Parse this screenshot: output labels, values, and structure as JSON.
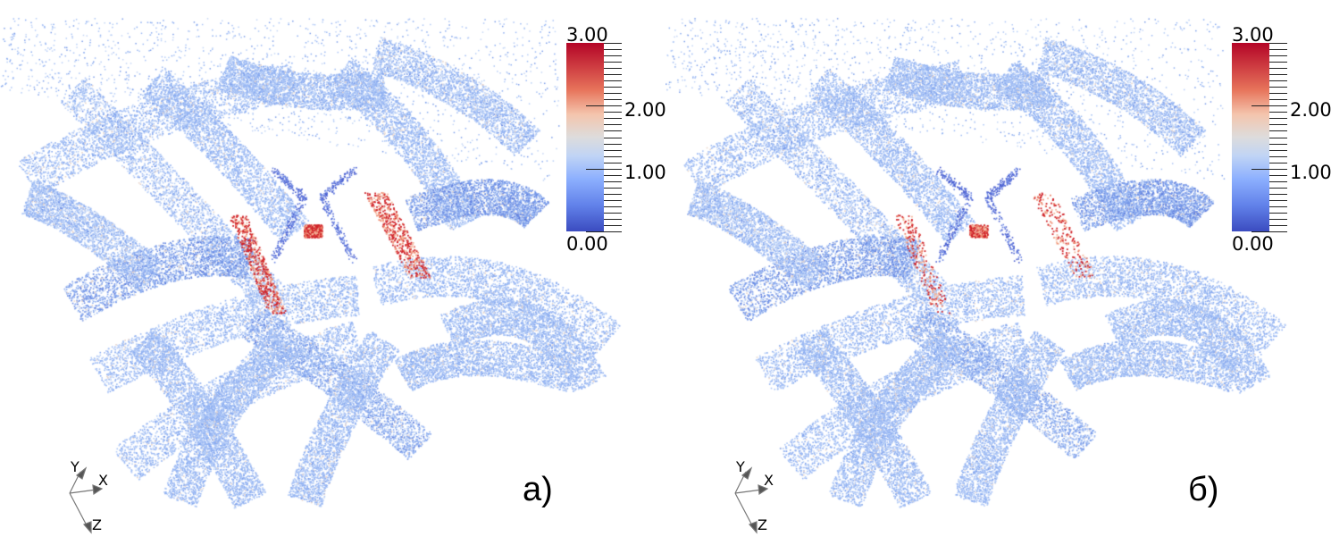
{
  "panels": [
    {
      "label": "а)",
      "colorbar": {
        "max_label": "3.00",
        "labels": [
          "2.00",
          "1.00"
        ],
        "min_label": "0.00",
        "range": [
          0,
          3
        ],
        "colormap": "coolwarm"
      },
      "axes": {
        "x": "X",
        "y": "Y",
        "z": "Z"
      },
      "high_value_fraction": 0.025
    },
    {
      "label": "б)",
      "colorbar": {
        "max_label": "3.00",
        "labels": [
          "2.00",
          "1.00"
        ],
        "min_label": "0.00",
        "range": [
          0,
          3
        ],
        "colormap": "coolwarm"
      },
      "axes": {
        "x": "X",
        "y": "Y",
        "z": "Z"
      },
      "high_value_fraction": 0.012
    }
  ],
  "colors": {
    "low": "#3b4cc0",
    "mid": "#dddcdc",
    "high": "#b40426",
    "typical": "#a9c3f5"
  }
}
